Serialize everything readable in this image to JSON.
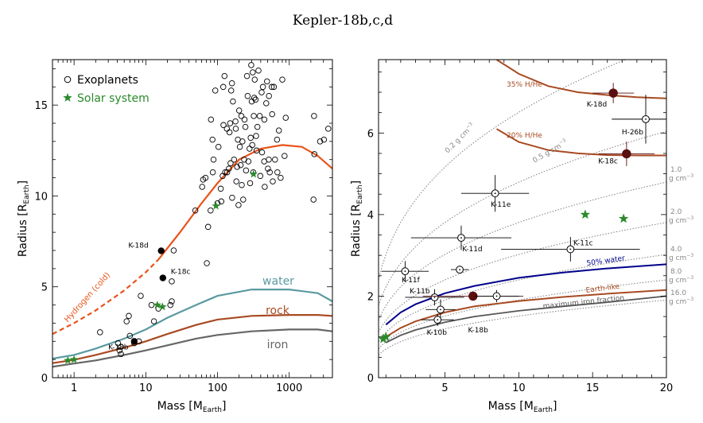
{
  "title": "Kepler-18b,c,d",
  "colors": {
    "hydrogen": "#e8531a",
    "water": "#5a9aa0",
    "rock": "#a84a22",
    "iron": "#666666",
    "solar": "#2a8a2a",
    "kepler18": "#000000",
    "darkred": "#5a0f0f",
    "water50": "#00008b",
    "density": "#888888",
    "ironfrac": "#555555"
  },
  "chart_data": [
    {
      "type": "scatter",
      "xlabel": "Mass [M",
      "xlabel_sub": "Earth",
      "xlabel_end": "]",
      "ylabel": "Radius [R",
      "ylabel_sub": "Earth",
      "ylabel_end": "]",
      "xscale": "log",
      "xlim": [
        0.5,
        4000
      ],
      "ylim": [
        0,
        17.5
      ],
      "xticks": [
        1,
        10,
        100,
        1000
      ],
      "xtick_labels": [
        "1",
        "10",
        "100",
        "1000"
      ],
      "yticks": [
        0,
        5,
        10,
        15
      ],
      "ytick_labels": [
        "0",
        "5",
        "10",
        "15"
      ],
      "legend": {
        "position": "top-left",
        "items": [
          {
            "label": "Exoplanets",
            "marker": "open-circle"
          },
          {
            "label": "Solar system",
            "marker": "star"
          }
        ]
      },
      "curves": [
        {
          "name": "Hydrogen (cold)",
          "style": "dashed",
          "colorKey": "hydrogen",
          "x": [
            0.5,
            1,
            2,
            5,
            10,
            15
          ],
          "y": [
            2.4,
            3.0,
            3.7,
            4.8,
            5.8,
            6.5
          ]
        },
        {
          "name": "",
          "style": "solid",
          "colorKey": "hydrogen",
          "x": [
            15,
            30,
            60,
            100,
            200,
            400,
            800,
            1500,
            2500,
            4000
          ],
          "y": [
            6.5,
            8.0,
            9.6,
            10.7,
            12.0,
            12.6,
            12.8,
            12.7,
            12.2,
            11.5
          ]
        },
        {
          "name": "water",
          "style": "solid",
          "colorKey": "water",
          "x": [
            0.5,
            1,
            2,
            5,
            10,
            20,
            50,
            100,
            300,
            1000,
            2500,
            4000
          ],
          "y": [
            1.05,
            1.25,
            1.6,
            2.15,
            2.65,
            3.3,
            4.0,
            4.5,
            4.85,
            4.85,
            4.65,
            4.2
          ]
        },
        {
          "name": "rock",
          "style": "solid",
          "colorKey": "rock",
          "x": [
            0.5,
            1,
            2,
            5,
            10,
            20,
            50,
            100,
            300,
            1000,
            2500,
            4000
          ],
          "y": [
            0.8,
            0.98,
            1.25,
            1.65,
            2.0,
            2.4,
            2.9,
            3.2,
            3.4,
            3.45,
            3.45,
            3.4
          ]
        },
        {
          "name": "iron",
          "style": "solid",
          "colorKey": "iron",
          "x": [
            0.5,
            1,
            2,
            5,
            10,
            20,
            50,
            100,
            300,
            1000,
            2500,
            4000
          ],
          "y": [
            0.6,
            0.78,
            0.95,
            1.25,
            1.5,
            1.78,
            2.15,
            2.35,
            2.55,
            2.65,
            2.65,
            2.55
          ]
        }
      ],
      "curve_labels": [
        {
          "text": "water",
          "colorKey": "water",
          "size": 14
        },
        {
          "text": "rock",
          "colorKey": "rock",
          "size": 14
        },
        {
          "text": "iron",
          "colorKey": "iron",
          "size": 14
        },
        {
          "text": "Hydrogen (cold)",
          "colorKey": "hydrogen",
          "size": 10
        }
      ],
      "exoplanets": [
        [
          2.3,
          2.5
        ],
        [
          4.1,
          1.9
        ],
        [
          4.3,
          1.5
        ],
        [
          4.5,
          1.3
        ],
        [
          4.5,
          1.7
        ],
        [
          5.4,
          3.1
        ],
        [
          5.8,
          3.4
        ],
        [
          6.0,
          2.3
        ],
        [
          6.9,
          1.9
        ],
        [
          8.0,
          2.0
        ],
        [
          8.5,
          4.5
        ],
        [
          12.0,
          4.0
        ],
        [
          13.0,
          3.1
        ],
        [
          15.0,
          3.8
        ],
        [
          22.0,
          4.0
        ],
        [
          23.0,
          4.2
        ],
        [
          23.0,
          5.3
        ],
        [
          24.5,
          7.0
        ],
        [
          49.0,
          9.2
        ],
        [
          61.0,
          10.5
        ],
        [
          63.0,
          10.9
        ],
        [
          68.0,
          11.0
        ],
        [
          71.0,
          6.3
        ],
        [
          74.0,
          8.3
        ],
        [
          80.0,
          9.2
        ],
        [
          81.0,
          14.2
        ],
        [
          85.0,
          13.1
        ],
        [
          86.0,
          11.3
        ],
        [
          88.0,
          12.0
        ],
        [
          93.0,
          15.8
        ],
        [
          100.0,
          9.6
        ],
        [
          103.0,
          12.7
        ],
        [
          111.0,
          10.4
        ],
        [
          113.0,
          9.7
        ],
        [
          118.0,
          11.1
        ],
        [
          120.0,
          16.0
        ],
        [
          121.0,
          13.9
        ],
        [
          125.0,
          16.6
        ],
        [
          128.0,
          11.3
        ],
        [
          135.0,
          13.7
        ],
        [
          136.0,
          11.3
        ],
        [
          144.0,
          11.5
        ],
        [
          147.0,
          13.5
        ],
        [
          150.0,
          14.0
        ],
        [
          152.0,
          11.8
        ],
        [
          155.0,
          15.8
        ],
        [
          159.0,
          16.2
        ],
        [
          160.0,
          9.9
        ],
        [
          164.0,
          15.2
        ],
        [
          170.0,
          12.0
        ],
        [
          178.0,
          14.1
        ],
        [
          180.0,
          13.7
        ],
        [
          183.0,
          10.8
        ],
        [
          188.0,
          11.6
        ],
        [
          192.0,
          13.1
        ],
        [
          196.0,
          9.5
        ],
        [
          200.0,
          14.7
        ],
        [
          205.0,
          12.7
        ],
        [
          210.0,
          11.7
        ],
        [
          215.0,
          14.4
        ],
        [
          218.0,
          10.6
        ],
        [
          222.0,
          13.0
        ],
        [
          228.0,
          9.8
        ],
        [
          235.0,
          12.0
        ],
        [
          238.0,
          14.2
        ],
        [
          245.0,
          13.8
        ],
        [
          250.0,
          11.4
        ],
        [
          258.0,
          16.6
        ],
        [
          263.0,
          15.5
        ],
        [
          270.0,
          11.9
        ],
        [
          280.0,
          12.6
        ],
        [
          285.0,
          10.7
        ],
        [
          290.0,
          13.2
        ],
        [
          295.0,
          17.2
        ],
        [
          300.0,
          15.2
        ],
        [
          305.0,
          12.8
        ],
        [
          310.0,
          16.8
        ],
        [
          315.0,
          11.3
        ],
        [
          320.0,
          14.4
        ],
        [
          325.0,
          15.4
        ],
        [
          330.0,
          16.4
        ],
        [
          340.0,
          15.3
        ],
        [
          345.0,
          13.3
        ],
        [
          350.0,
          12.5
        ],
        [
          360.0,
          13.8
        ],
        [
          372.0,
          16.9
        ],
        [
          388.0,
          14.4
        ],
        [
          395.0,
          11.1
        ],
        [
          412.0,
          15.7
        ],
        [
          418.0,
          12.4
        ],
        [
          430.0,
          16.0
        ],
        [
          447.0,
          11.9
        ],
        [
          450.0,
          14.2
        ],
        [
          455.0,
          10.5
        ],
        [
          478.0,
          15.1
        ],
        [
          490.0,
          16.3
        ],
        [
          505.0,
          11.5
        ],
        [
          519.0,
          12.0
        ],
        [
          522.0,
          15.5
        ],
        [
          535.0,
          11.3
        ],
        [
          570.0,
          16.0
        ],
        [
          578.0,
          14.5
        ],
        [
          590.0,
          10.8
        ],
        [
          611.0,
          16.0
        ],
        [
          633.0,
          12.0
        ],
        [
          676.0,
          13.1
        ],
        [
          683.0,
          11.3
        ],
        [
          718.0,
          13.6
        ],
        [
          758.0,
          11.0
        ],
        [
          800.0,
          16.4
        ],
        [
          860.0,
          12.2
        ],
        [
          894.0,
          14.3
        ],
        [
          2180.0,
          9.8
        ],
        [
          2220.0,
          14.4
        ],
        [
          2240.0,
          12.3
        ],
        [
          2690.0,
          13.0
        ],
        [
          3050.0,
          13.1
        ],
        [
          3500.0,
          13.7
        ]
      ],
      "solar": [
        [
          0.82,
          0.95
        ],
        [
          1.0,
          1.0
        ],
        [
          14.5,
          4.0
        ],
        [
          17.1,
          3.9
        ],
        [
          95.2,
          9.45
        ],
        [
          317.8,
          11.2
        ]
      ],
      "kepler": [
        {
          "name": "K-18b",
          "x": 6.9,
          "y": 2.0
        },
        {
          "name": "K-18c",
          "x": 17.3,
          "y": 5.49
        },
        {
          "name": "K-18d",
          "x": 16.4,
          "y": 6.98
        }
      ]
    },
    {
      "type": "scatter",
      "xlabel": "Mass [M",
      "xlabel_sub": "Earth",
      "xlabel_end": "]",
      "ylabel": "Radius [R",
      "ylabel_sub": "Earth",
      "ylabel_end": "]",
      "xlim": [
        0.5,
        20
      ],
      "ylim": [
        0,
        7.8
      ],
      "xticks": [
        5,
        10,
        15,
        20
      ],
      "xtick_labels": [
        "5",
        "10",
        "15",
        "20"
      ],
      "yticks": [
        0,
        2,
        4,
        6
      ],
      "ytick_labels": [
        "0",
        "2",
        "4",
        "6"
      ],
      "density_curves": [
        {
          "rho": 0.2,
          "label": "0.2 g cm",
          "sup": "−3"
        },
        {
          "rho": 0.5,
          "label": "0.5 g cm",
          "sup": "−3"
        },
        {
          "rho": 1.0,
          "label1": "1.0",
          "label2": "g cm",
          "sup": "−3"
        },
        {
          "rho": 2.0,
          "label1": "2.0",
          "label2": "g cm",
          "sup": "−3"
        },
        {
          "rho": 4.0,
          "label1": "4.0",
          "label2": "g cm",
          "sup": "−3"
        },
        {
          "rho": 8.0,
          "label1": "8.0",
          "label2": "g cm",
          "sup": "−3"
        },
        {
          "rho": 16.0,
          "label1": "16.0",
          "label2": "g cm",
          "sup": "−3"
        }
      ],
      "comp_curves": [
        {
          "name": "35% H/He",
          "colorKey": "rock",
          "x": [
            8.5,
            10,
            12,
            14,
            16,
            18,
            20
          ],
          "y": [
            7.8,
            7.45,
            7.15,
            7.0,
            6.93,
            6.88,
            6.85
          ]
        },
        {
          "name": "20% H/He",
          "colorKey": "rock",
          "x": [
            8.5,
            10,
            12,
            14,
            16,
            18,
            20
          ],
          "y": [
            6.1,
            5.78,
            5.58,
            5.5,
            5.46,
            5.45,
            5.45
          ]
        },
        {
          "name": "50% water",
          "colorKey": "water50",
          "x": [
            1,
            2,
            3,
            5,
            7,
            10,
            13,
            16,
            20
          ],
          "y": [
            1.3,
            1.6,
            1.8,
            2.07,
            2.25,
            2.45,
            2.58,
            2.68,
            2.78
          ]
        },
        {
          "name": "Earth-like",
          "colorKey": "rock",
          "x": [
            1,
            2,
            3,
            5,
            7,
            10,
            13,
            16,
            20
          ],
          "y": [
            1.0,
            1.22,
            1.38,
            1.6,
            1.75,
            1.88,
            1.98,
            2.06,
            2.15
          ]
        },
        {
          "name": "maximum iron fraction",
          "colorKey": "ironfrac",
          "x": [
            1,
            2,
            3,
            5,
            7,
            10,
            13,
            16,
            20
          ],
          "y": [
            0.86,
            1.04,
            1.17,
            1.36,
            1.5,
            1.64,
            1.75,
            1.85,
            2.0
          ]
        }
      ],
      "planets": [
        {
          "name": "K-18d",
          "x": 16.4,
          "xerr": 1.4,
          "y": 6.98,
          "yerr": 0.25,
          "filled": true
        },
        {
          "name": "H-26b",
          "x": 18.6,
          "xerr": 2.3,
          "y": 6.34,
          "yerr": 0.6,
          "filled": false
        },
        {
          "name": "K-18c",
          "x": 17.3,
          "xerr": 1.9,
          "y": 5.49,
          "yerr": 0.3,
          "filled": true
        },
        {
          "name": "K-11e",
          "x": 8.4,
          "xerr": 2.3,
          "y": 4.52,
          "yerr": 0.45,
          "filled": false
        },
        {
          "name": "K-11d",
          "x": 6.1,
          "xerr": 3.4,
          "y": 3.43,
          "yerr": 0.3,
          "filled": false
        },
        {
          "name": "K-11c",
          "x": 13.5,
          "xerr": 4.7,
          "y": 3.15,
          "yerr": 0.3,
          "filled": false
        },
        {
          "name": "K-11f",
          "x": 2.3,
          "xerr": 1.6,
          "y": 2.61,
          "yerr": 0.25,
          "filled": false
        },
        {
          "name": "",
          "x": 6.0,
          "xerr": 0.6,
          "y": 2.65,
          "yerr": 0.1,
          "filled": false
        },
        {
          "name": "K-11b",
          "x": 4.3,
          "xerr": 2.0,
          "y": 1.97,
          "yerr": 0.2,
          "filled": false
        },
        {
          "name": "",
          "x": 6.9,
          "xerr": 3.4,
          "y": 2.0,
          "yerr": 0.1,
          "filled": true
        },
        {
          "name": "",
          "x": 8.5,
          "xerr": 1.5,
          "y": 2.0,
          "yerr": 0.15,
          "filled": false
        },
        {
          "name": "",
          "x": 4.7,
          "xerr": 1.0,
          "y": 1.67,
          "yerr": 0.25,
          "filled": false
        },
        {
          "name": "K-10b",
          "x": 4.5,
          "xerr": 1.1,
          "y": 1.42,
          "yerr": 0.15,
          "filled": false
        },
        {
          "name": "K-18b",
          "x": 4.55,
          "xerr": 0,
          "y": 1.42,
          "yerr": 0,
          "filled": false,
          "label_only": true
        }
      ],
      "solar": [
        [
          0.82,
          0.95
        ],
        [
          1.0,
          1.0
        ],
        [
          14.5,
          4.0
        ],
        [
          17.1,
          3.9
        ]
      ]
    }
  ]
}
